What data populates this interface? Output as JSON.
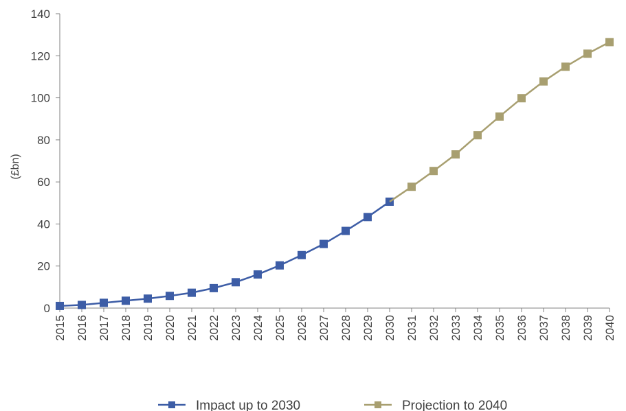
{
  "chart_data": {
    "type": "line",
    "title": "",
    "xlabel": "",
    "ylabel": "(£bn)",
    "ylim": [
      0,
      140
    ],
    "yticks": [
      0,
      20,
      40,
      60,
      80,
      100,
      120,
      140
    ],
    "grid": false,
    "legend_position": "bottom",
    "categories": [
      "2015",
      "2016",
      "2017",
      "2018",
      "2019",
      "2020",
      "2021",
      "2022",
      "2023",
      "2024",
      "2025",
      "2026",
      "2027",
      "2028",
      "2029",
      "2030",
      "2031",
      "2032",
      "2033",
      "2034",
      "2035",
      "2036",
      "2037",
      "2038",
      "2039",
      "2040"
    ],
    "series": [
      {
        "name": "Impact up to 2030",
        "color": "#3d5da6",
        "x": [
          "2015",
          "2016",
          "2017",
          "2018",
          "2019",
          "2020",
          "2021",
          "2022",
          "2023",
          "2024",
          "2025",
          "2026",
          "2027",
          "2028",
          "2029",
          "2030"
        ],
        "values": [
          1,
          1.5,
          2.5,
          3.5,
          4.5,
          5.8,
          7.3,
          9.5,
          12.3,
          16,
          20.3,
          25.2,
          30.5,
          36.7,
          43.3,
          50.6
        ]
      },
      {
        "name": "Projection to 2040",
        "color": "#a89f70",
        "x": [
          "2030",
          "2031",
          "2032",
          "2033",
          "2034",
          "2035",
          "2036",
          "2037",
          "2038",
          "2039",
          "2040"
        ],
        "values": [
          50.6,
          57.7,
          65.2,
          73.1,
          82.2,
          91.1,
          99.8,
          107.8,
          114.8,
          121,
          126.5
        ]
      }
    ]
  }
}
